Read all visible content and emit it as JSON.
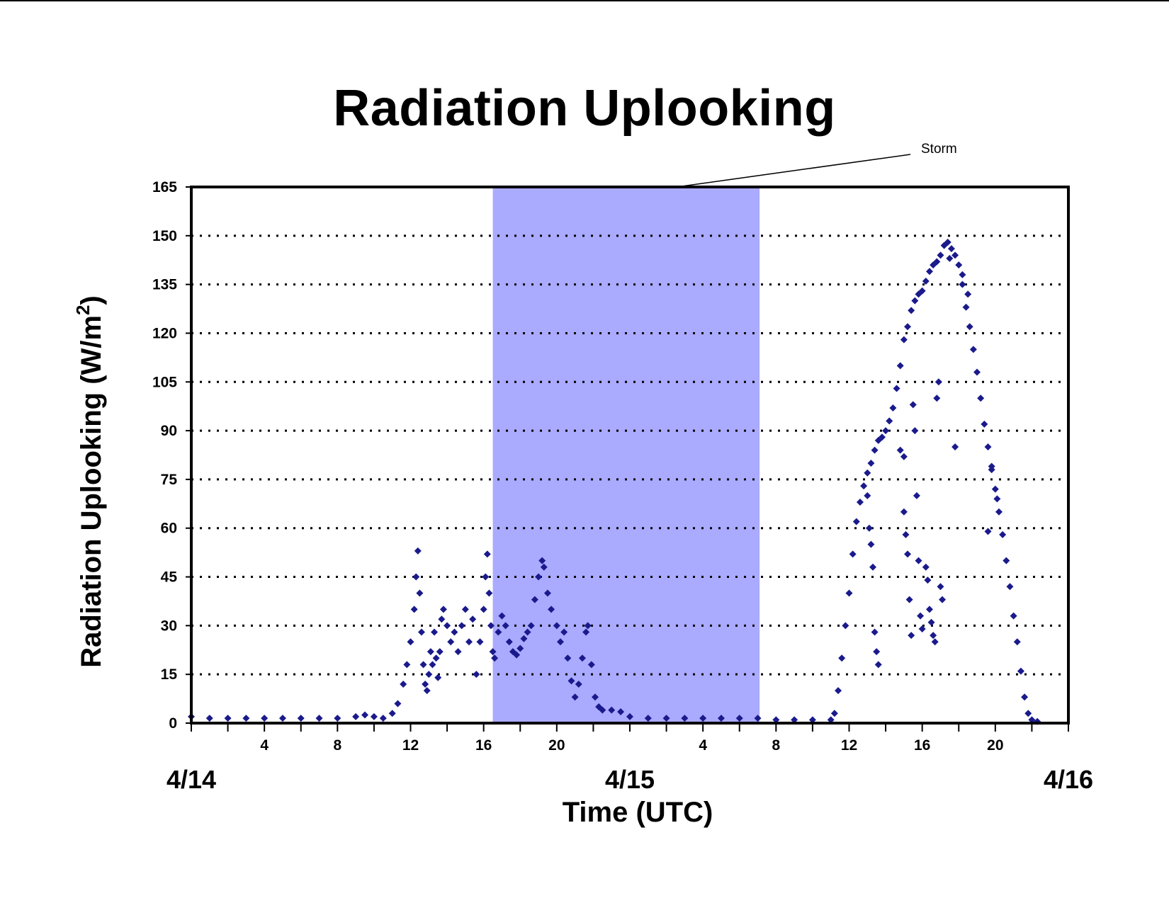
{
  "chart_data": {
    "type": "scatter",
    "title": "Radiation Uplooking",
    "xlabel": "Time (UTC)",
    "ylabel_main": "Radiation Uplooking (W/m",
    "ylabel_sup": "2",
    "ylabel_close": ")",
    "ylim": [
      0,
      165
    ],
    "yticks": [
      0,
      15,
      30,
      45,
      60,
      75,
      90,
      105,
      120,
      135,
      150,
      165
    ],
    "xlim_hours": [
      0,
      48
    ],
    "x_unit": "hours since 4/14 00:00 UTC",
    "hour_ticks": [
      {
        "h": 4,
        "label": "4"
      },
      {
        "h": 8,
        "label": "8"
      },
      {
        "h": 12,
        "label": "12"
      },
      {
        "h": 16,
        "label": "16"
      },
      {
        "h": 20,
        "label": "20"
      },
      {
        "h": 28,
        "label": "4"
      },
      {
        "h": 32,
        "label": "8"
      },
      {
        "h": 36,
        "label": "12"
      },
      {
        "h": 40,
        "label": "16"
      },
      {
        "h": 44,
        "label": "20"
      }
    ],
    "day_ticks": [
      {
        "h": 0,
        "label": "4/14"
      },
      {
        "h": 24,
        "label": "4/15"
      },
      {
        "h": 48,
        "label": "4/16"
      }
    ],
    "grid": "horizontal dotted",
    "storm_band_hours": [
      16.5,
      31.1
    ],
    "storm_label": "Storm",
    "colors": {
      "marker": "#1a1a8c",
      "storm": "#aaaaff",
      "axis": "#000000",
      "grid": "#000000"
    },
    "series": [
      {
        "marker": "diamond",
        "points": [
          [
            0.0,
            2
          ],
          [
            1.0,
            1.5
          ],
          [
            2.0,
            1.5
          ],
          [
            3.0,
            1.5
          ],
          [
            4.0,
            1.5
          ],
          [
            5.0,
            1.5
          ],
          [
            6.0,
            1.5
          ],
          [
            7.0,
            1.5
          ],
          [
            8.0,
            1.5
          ],
          [
            9.0,
            2
          ],
          [
            9.5,
            2.5
          ],
          [
            10.0,
            2
          ],
          [
            10.5,
            1.5
          ],
          [
            11.0,
            3
          ],
          [
            11.3,
            6
          ],
          [
            11.6,
            12
          ],
          [
            11.8,
            18
          ],
          [
            12.0,
            25
          ],
          [
            12.2,
            35
          ],
          [
            12.3,
            45
          ],
          [
            12.4,
            53
          ],
          [
            12.5,
            40
          ],
          [
            12.6,
            28
          ],
          [
            12.7,
            18
          ],
          [
            12.8,
            12
          ],
          [
            12.9,
            10
          ],
          [
            13.0,
            15
          ],
          [
            13.1,
            22
          ],
          [
            13.2,
            18
          ],
          [
            13.3,
            28
          ],
          [
            13.4,
            20
          ],
          [
            13.5,
            14
          ],
          [
            13.6,
            22
          ],
          [
            13.7,
            32
          ],
          [
            13.8,
            35
          ],
          [
            14.0,
            30
          ],
          [
            14.2,
            25
          ],
          [
            14.4,
            28
          ],
          [
            14.6,
            22
          ],
          [
            14.8,
            30
          ],
          [
            15.0,
            35
          ],
          [
            15.2,
            25
          ],
          [
            15.4,
            32
          ],
          [
            15.6,
            15
          ],
          [
            15.8,
            25
          ],
          [
            16.0,
            35
          ],
          [
            16.1,
            45
          ],
          [
            16.2,
            52
          ],
          [
            16.3,
            40
          ],
          [
            16.4,
            30
          ],
          [
            16.5,
            22
          ],
          [
            16.6,
            20
          ],
          [
            16.8,
            28
          ],
          [
            17.0,
            33
          ],
          [
            17.2,
            30
          ],
          [
            17.4,
            25
          ],
          [
            17.6,
            22
          ],
          [
            17.8,
            21
          ],
          [
            18.0,
            23
          ],
          [
            18.2,
            26
          ],
          [
            18.4,
            28
          ],
          [
            18.6,
            30
          ],
          [
            18.8,
            38
          ],
          [
            19.0,
            45
          ],
          [
            19.2,
            50
          ],
          [
            19.3,
            48
          ],
          [
            19.5,
            40
          ],
          [
            19.7,
            35
          ],
          [
            20.0,
            30
          ],
          [
            20.2,
            25
          ],
          [
            20.4,
            28
          ],
          [
            20.6,
            20
          ],
          [
            20.8,
            13
          ],
          [
            21.0,
            8
          ],
          [
            21.2,
            12
          ],
          [
            21.4,
            20
          ],
          [
            21.6,
            28
          ],
          [
            21.7,
            30
          ],
          [
            21.9,
            18
          ],
          [
            22.1,
            8
          ],
          [
            22.3,
            5
          ],
          [
            22.5,
            4
          ],
          [
            23.0,
            4
          ],
          [
            23.5,
            3.5
          ],
          [
            24.0,
            2
          ],
          [
            25.0,
            1.5
          ],
          [
            26.0,
            1.5
          ],
          [
            27.0,
            1.5
          ],
          [
            28.0,
            1.5
          ],
          [
            29.0,
            1.5
          ],
          [
            30.0,
            1.5
          ],
          [
            31.0,
            1.5
          ],
          [
            32.0,
            1
          ],
          [
            33.0,
            1
          ],
          [
            34.0,
            1
          ],
          [
            35.0,
            1
          ],
          [
            35.2,
            3
          ],
          [
            35.4,
            10
          ],
          [
            35.6,
            20
          ],
          [
            35.8,
            30
          ],
          [
            36.0,
            40
          ],
          [
            36.2,
            52
          ],
          [
            36.4,
            62
          ],
          [
            36.6,
            68
          ],
          [
            36.8,
            73
          ],
          [
            37.0,
            77
          ],
          [
            37.2,
            80
          ],
          [
            37.4,
            84
          ],
          [
            37.6,
            87
          ],
          [
            37.8,
            88
          ],
          [
            38.0,
            90
          ],
          [
            38.2,
            93
          ],
          [
            38.4,
            97
          ],
          [
            38.6,
            103
          ],
          [
            38.8,
            110
          ],
          [
            39.0,
            118
          ],
          [
            39.2,
            122
          ],
          [
            39.4,
            127
          ],
          [
            39.6,
            130
          ],
          [
            39.8,
            132
          ],
          [
            40.0,
            133
          ],
          [
            40.2,
            136
          ],
          [
            40.4,
            139
          ],
          [
            40.6,
            141
          ],
          [
            40.8,
            142
          ],
          [
            41.0,
            144
          ],
          [
            41.2,
            147
          ],
          [
            41.4,
            148
          ],
          [
            41.6,
            146
          ],
          [
            41.8,
            144
          ],
          [
            42.0,
            141
          ],
          [
            42.2,
            135
          ],
          [
            42.4,
            128
          ],
          [
            42.6,
            122
          ],
          [
            42.8,
            115
          ],
          [
            43.0,
            108
          ],
          [
            43.2,
            100
          ],
          [
            43.4,
            92
          ],
          [
            43.6,
            85
          ],
          [
            43.8,
            78
          ],
          [
            44.0,
            72
          ],
          [
            44.2,
            65
          ],
          [
            44.4,
            58
          ],
          [
            44.6,
            50
          ],
          [
            44.8,
            42
          ],
          [
            45.0,
            33
          ],
          [
            45.2,
            25
          ],
          [
            45.4,
            16
          ],
          [
            45.6,
            8
          ],
          [
            45.8,
            3
          ],
          [
            46.0,
            1
          ],
          [
            46.3,
            0.5
          ],
          [
            37.0,
            70
          ],
          [
            37.1,
            60
          ],
          [
            37.2,
            55
          ],
          [
            37.3,
            48
          ],
          [
            37.4,
            28
          ],
          [
            37.5,
            22
          ],
          [
            37.6,
            18
          ],
          [
            38.8,
            84
          ],
          [
            39.0,
            82
          ],
          [
            39.0,
            65
          ],
          [
            39.1,
            58
          ],
          [
            39.2,
            52
          ],
          [
            39.3,
            38
          ],
          [
            39.4,
            27
          ],
          [
            39.5,
            98
          ],
          [
            39.6,
            90
          ],
          [
            39.7,
            70
          ],
          [
            39.8,
            50
          ],
          [
            39.9,
            33
          ],
          [
            40.0,
            29
          ],
          [
            40.2,
            48
          ],
          [
            40.3,
            44
          ],
          [
            40.4,
            35
          ],
          [
            40.5,
            31
          ],
          [
            40.6,
            27
          ],
          [
            40.7,
            25
          ],
          [
            40.8,
            100
          ],
          [
            40.9,
            105
          ],
          [
            41.0,
            42
          ],
          [
            41.1,
            38
          ],
          [
            41.8,
            85
          ],
          [
            42.5,
            132
          ],
          [
            43.8,
            79
          ],
          [
            44.1,
            69
          ],
          [
            43.6,
            59
          ],
          [
            42.2,
            138
          ],
          [
            41.5,
            143
          ]
        ]
      }
    ]
  }
}
